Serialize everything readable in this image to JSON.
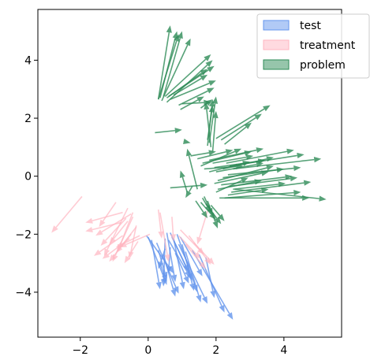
{
  "chart_data": {
    "type": "quiver",
    "title": "",
    "xlabel": "",
    "ylabel": "",
    "xlim": [
      -3.25,
      5.7
    ],
    "ylim": [
      -5.55,
      5.75
    ],
    "xticks": [
      -2,
      0,
      2,
      4
    ],
    "yticks": [
      -4,
      -2,
      0,
      2,
      4
    ],
    "xtick_labels": [
      "−2",
      "0",
      "2",
      "4"
    ],
    "ytick_labels": [
      "−4",
      "−2",
      "0",
      "2",
      "4"
    ],
    "grid": false,
    "legend_position": "top-right",
    "series": [
      {
        "name": "test",
        "color": "#6495ED",
        "arrows": [
          [
            -0.05,
            -2.05,
            0.75,
            -3.35
          ],
          [
            0.0,
            -2.1,
            0.55,
            -3.75
          ],
          [
            0.1,
            -2.2,
            0.35,
            -3.9
          ],
          [
            0.25,
            -2.3,
            0.9,
            -4.05
          ],
          [
            0.3,
            -2.55,
            0.55,
            -3.55
          ],
          [
            0.5,
            -2.15,
            0.45,
            -3.8
          ],
          [
            0.55,
            -1.95,
            0.8,
            -3.65
          ],
          [
            0.6,
            -2.2,
            1.25,
            -3.5
          ],
          [
            0.65,
            -1.95,
            1.3,
            -3.6
          ],
          [
            0.7,
            -2.1,
            1.2,
            -3.3
          ],
          [
            0.75,
            -2.15,
            1.05,
            -3.9
          ],
          [
            0.85,
            -2.0,
            1.45,
            -4.0
          ],
          [
            0.95,
            -2.1,
            1.6,
            -3.45
          ],
          [
            1.0,
            -2.35,
            1.35,
            -3.95
          ],
          [
            0.5,
            -2.5,
            0.3,
            -3.2
          ],
          [
            0.65,
            -2.45,
            0.6,
            -3.35
          ],
          [
            0.45,
            -2.7,
            0.8,
            -4.15
          ],
          [
            0.8,
            -2.65,
            1.2,
            -3.7
          ],
          [
            1.1,
            -2.6,
            1.55,
            -4.35
          ],
          [
            1.3,
            -2.55,
            2.5,
            -4.95
          ],
          [
            1.5,
            -2.7,
            2.25,
            -4.7
          ],
          [
            1.7,
            -2.8,
            1.95,
            -4.2
          ],
          [
            0.9,
            -2.35,
            1.75,
            -4.4
          ],
          [
            0.35,
            -3.0,
            0.55,
            -3.65
          ]
        ]
      },
      {
        "name": "treatment",
        "color": "#FFB6C1",
        "arrows": [
          [
            -1.95,
            -0.7,
            -2.85,
            -1.95
          ],
          [
            -0.8,
            -1.6,
            -1.85,
            -1.9
          ],
          [
            -0.5,
            -1.3,
            -1.55,
            -2.05
          ],
          [
            -0.65,
            -1.45,
            -1.4,
            -2.4
          ],
          [
            -0.95,
            -0.9,
            -1.45,
            -1.75
          ],
          [
            -0.75,
            -1.25,
            -1.85,
            -1.6
          ],
          [
            -0.6,
            -1.55,
            -1.15,
            -2.35
          ],
          [
            -0.75,
            -2.05,
            -1.6,
            -2.75
          ],
          [
            -0.5,
            -2.0,
            -1.15,
            -2.95
          ],
          [
            -0.35,
            -1.75,
            -0.95,
            -2.65
          ],
          [
            -0.55,
            -2.15,
            -1.35,
            -2.85
          ],
          [
            -0.3,
            -2.25,
            -0.7,
            -3.0
          ],
          [
            -0.45,
            -1.4,
            -1.05,
            -2.95
          ],
          [
            -0.35,
            -1.7,
            -0.55,
            -2.85
          ],
          [
            -0.6,
            -1.1,
            -1.3,
            -2.75
          ],
          [
            -0.25,
            -2.05,
            -0.95,
            -2.45
          ],
          [
            -0.45,
            -1.25,
            -0.9,
            -2.6
          ],
          [
            0.05,
            -2.0,
            -0.85,
            -2.45
          ],
          [
            0.7,
            -1.4,
            0.75,
            -2.25
          ],
          [
            0.35,
            -1.25,
            0.6,
            -2.95
          ],
          [
            0.3,
            -1.15,
            0.4,
            -2.15
          ],
          [
            1.75,
            -1.2,
            1.45,
            -2.35
          ],
          [
            1.35,
            -2.3,
            1.95,
            -3.05
          ],
          [
            0.95,
            -1.85,
            1.65,
            -2.7
          ],
          [
            1.2,
            -2.05,
            1.85,
            -3.05
          ],
          [
            1.1,
            -2.35,
            1.7,
            -3.2
          ],
          [
            0.9,
            -2.05,
            1.55,
            -2.85
          ]
        ]
      },
      {
        "name": "problem",
        "color": "#2E8B57",
        "arrows": [
          [
            0.3,
            2.65,
            0.65,
            5.2
          ],
          [
            0.35,
            2.7,
            0.85,
            5.0
          ],
          [
            0.45,
            2.75,
            1.0,
            5.0
          ],
          [
            0.3,
            2.65,
            0.9,
            4.9
          ],
          [
            0.4,
            2.6,
            1.25,
            4.75
          ],
          [
            0.5,
            2.75,
            1.85,
            4.2
          ],
          [
            0.55,
            2.7,
            1.75,
            3.7
          ],
          [
            0.55,
            2.55,
            1.9,
            4.0
          ],
          [
            0.6,
            2.75,
            1.95,
            3.8
          ],
          [
            0.65,
            2.65,
            2.0,
            3.3
          ],
          [
            0.75,
            2.8,
            1.75,
            3.5
          ],
          [
            0.9,
            2.45,
            1.95,
            3.05
          ],
          [
            0.95,
            2.3,
            1.65,
            2.75
          ],
          [
            1.0,
            2.5,
            1.85,
            2.55
          ],
          [
            1.55,
            2.35,
            1.9,
            2.65
          ],
          [
            1.75,
            1.05,
            1.9,
            2.65
          ],
          [
            1.8,
            1.15,
            2.0,
            2.75
          ],
          [
            1.85,
            1.0,
            1.7,
            2.55
          ],
          [
            1.75,
            1.25,
            1.9,
            2.45
          ],
          [
            1.9,
            0.85,
            2.0,
            2.25
          ],
          [
            2.0,
            1.3,
            3.6,
            2.45
          ],
          [
            2.15,
            1.25,
            3.35,
            2.15
          ],
          [
            2.25,
            1.1,
            3.05,
            1.85
          ],
          [
            0.2,
            1.5,
            1.0,
            1.6
          ],
          [
            1.05,
            1.2,
            1.25,
            1.15
          ],
          [
            1.25,
            0.7,
            2.0,
            0.85
          ],
          [
            1.45,
            0.6,
            2.5,
            0.9
          ],
          [
            1.55,
            0.35,
            2.75,
            0.95
          ],
          [
            1.6,
            0.45,
            3.05,
            0.85
          ],
          [
            1.8,
            0.55,
            3.4,
            0.95
          ],
          [
            1.9,
            0.45,
            3.1,
            0.7
          ],
          [
            1.65,
            0.25,
            2.8,
            0.35
          ],
          [
            1.8,
            0.15,
            3.0,
            0.5
          ],
          [
            1.95,
            0.3,
            3.45,
            0.55
          ],
          [
            2.0,
            0.15,
            3.4,
            0.45
          ],
          [
            2.2,
            0.25,
            3.7,
            0.65
          ],
          [
            2.3,
            0.45,
            4.3,
            0.9
          ],
          [
            2.4,
            0.35,
            4.6,
            0.75
          ],
          [
            2.5,
            0.25,
            5.1,
            0.6
          ],
          [
            2.35,
            0.05,
            4.5,
            0.3
          ],
          [
            2.2,
            -0.05,
            4.0,
            0.25
          ],
          [
            2.05,
            -0.15,
            3.7,
            0.35
          ],
          [
            1.95,
            -0.25,
            3.55,
            0.15
          ],
          [
            2.4,
            -0.35,
            4.4,
            -0.05
          ],
          [
            2.5,
            -0.45,
            4.05,
            -0.25
          ],
          [
            2.15,
            -0.3,
            4.25,
            0.0
          ],
          [
            2.05,
            -0.45,
            3.35,
            -0.15
          ],
          [
            2.0,
            -0.55,
            2.95,
            -0.05
          ],
          [
            2.25,
            -0.75,
            4.5,
            -0.55
          ],
          [
            2.45,
            -0.55,
            4.8,
            -0.2
          ],
          [
            2.55,
            -0.45,
            5.25,
            -0.8
          ],
          [
            2.1,
            -0.75,
            4.75,
            -0.75
          ],
          [
            2.35,
            -0.65,
            3.55,
            -0.45
          ],
          [
            0.65,
            -0.4,
            1.75,
            -0.3
          ],
          [
            1.15,
            -0.55,
            0.95,
            0.2
          ],
          [
            1.3,
            -0.35,
            1.1,
            -0.75
          ],
          [
            1.45,
            -0.45,
            1.15,
            0.95
          ],
          [
            1.4,
            -0.85,
            1.75,
            -1.45
          ],
          [
            1.55,
            -0.9,
            2.0,
            -1.5
          ],
          [
            1.6,
            -0.75,
            1.85,
            -1.25
          ],
          [
            1.7,
            -0.95,
            2.15,
            -1.65
          ],
          [
            1.75,
            -0.85,
            2.05,
            -1.8
          ],
          [
            1.85,
            -1.0,
            2.25,
            -1.55
          ],
          [
            1.65,
            -0.7,
            1.9,
            -1.35
          ]
        ]
      }
    ]
  }
}
